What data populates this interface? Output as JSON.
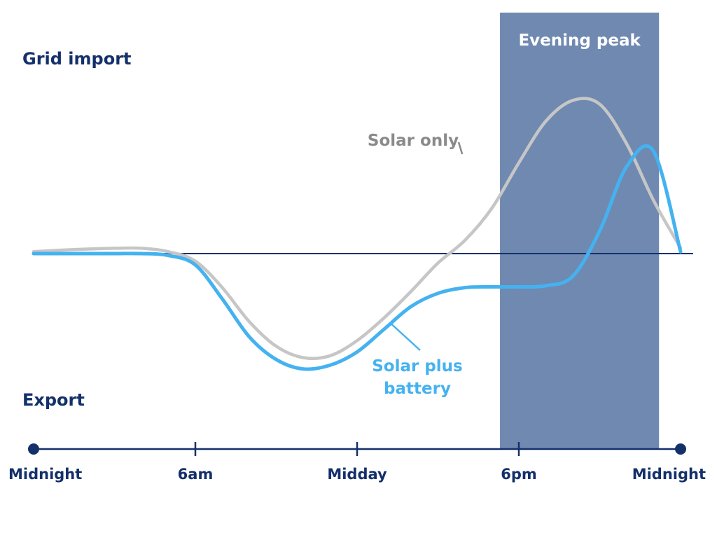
{
  "chart_data": {
    "type": "line",
    "y_top_label": "Grid import",
    "y_bottom_label": "Export",
    "x_range": [
      0,
      24
    ],
    "y_range": [
      -5,
      5
    ],
    "x_ticks": [
      {
        "x": 0,
        "label": "Midnight"
      },
      {
        "x": 6,
        "label": "6am"
      },
      {
        "x": 12,
        "label": "Midday"
      },
      {
        "x": 18,
        "label": "6pm"
      },
      {
        "x": 24,
        "label": "Midnight"
      }
    ],
    "highlight_band": {
      "x_start": 17.3,
      "x_end": 23.2,
      "label": "Evening peak",
      "color": "#6f89b1"
    },
    "series": [
      {
        "name": "Solar only",
        "color": "#c6c6c6",
        "label_color": "#8a8a8a",
        "x": [
          0,
          1,
          2,
          3,
          4,
          5,
          6,
          7,
          8,
          9,
          10,
          11,
          12,
          13,
          14,
          15,
          16,
          17,
          18,
          19,
          20,
          21,
          22,
          23,
          24
        ],
        "y": [
          0.05,
          0.09,
          0.12,
          0.14,
          0.14,
          0.05,
          -0.2,
          -0.9,
          -1.8,
          -2.45,
          -2.75,
          -2.7,
          -2.3,
          -1.7,
          -1.0,
          -0.25,
          0.35,
          1.2,
          2.4,
          3.5,
          4.05,
          3.95,
          2.9,
          1.4,
          0.15
        ]
      },
      {
        "name": "Solar plus battery",
        "color": "#45b2f0",
        "label_color": "#45b2f0",
        "x": [
          0,
          1,
          2,
          3,
          4,
          5,
          6,
          7,
          8,
          9,
          10,
          11,
          12,
          13,
          14,
          15,
          16,
          17,
          18,
          19,
          20,
          21,
          22,
          23,
          24
        ],
        "y": [
          0.0,
          0.0,
          0.0,
          0.0,
          0.0,
          -0.05,
          -0.3,
          -1.2,
          -2.2,
          -2.8,
          -3.05,
          -2.95,
          -2.6,
          -2.0,
          -1.4,
          -1.05,
          -0.9,
          -0.88,
          -0.88,
          -0.85,
          -0.6,
          0.6,
          2.3,
          2.7,
          0.05
        ]
      }
    ]
  }
}
